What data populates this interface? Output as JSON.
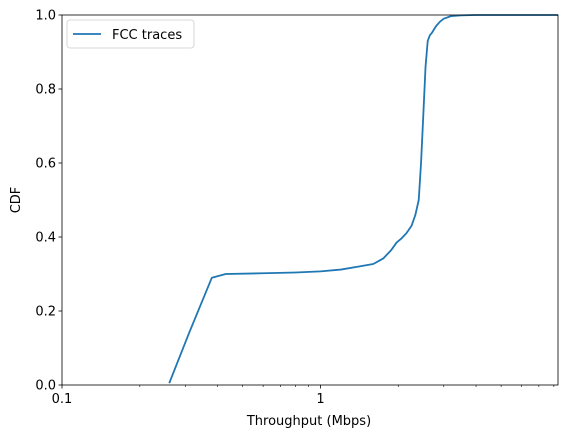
{
  "chart_data": {
    "type": "line",
    "xlabel": "Throughput (Mbps)",
    "ylabel": "CDF",
    "xscale": "log",
    "xlim": [
      0.1,
      8.3
    ],
    "ylim": [
      0,
      1
    ],
    "x_ticks": [
      {
        "value": 0.1,
        "label": "0.1"
      },
      {
        "value": 1,
        "label": "1"
      }
    ],
    "y_ticks": [
      {
        "value": 0.0,
        "label": "0.0"
      },
      {
        "value": 0.2,
        "label": "0.2"
      },
      {
        "value": 0.4,
        "label": "0.4"
      },
      {
        "value": 0.6,
        "label": "0.6"
      },
      {
        "value": 0.8,
        "label": "0.8"
      },
      {
        "value": 1.0,
        "label": "1.0"
      }
    ],
    "grid": false,
    "legend_position": "upper left",
    "series": [
      {
        "name": "FCC traces",
        "color": "#1f77b4",
        "x": [
          0.26,
          0.31,
          0.38,
          0.43,
          0.6,
          0.8,
          1.0,
          1.2,
          1.4,
          1.6,
          1.75,
          1.88,
          1.97,
          2.05,
          2.15,
          2.25,
          2.33,
          2.4,
          2.45,
          2.5,
          2.55,
          2.6,
          2.65,
          2.7,
          2.8,
          2.9,
          3.0,
          3.2,
          3.5,
          4.0,
          5.0,
          8.3
        ],
        "y": [
          0.005,
          0.14,
          0.29,
          0.3,
          0.302,
          0.304,
          0.307,
          0.312,
          0.32,
          0.327,
          0.342,
          0.365,
          0.385,
          0.395,
          0.41,
          0.43,
          0.46,
          0.5,
          0.6,
          0.73,
          0.86,
          0.93,
          0.945,
          0.952,
          0.97,
          0.982,
          0.99,
          0.997,
          0.999,
          1.0,
          1.0,
          1.0
        ]
      }
    ]
  }
}
